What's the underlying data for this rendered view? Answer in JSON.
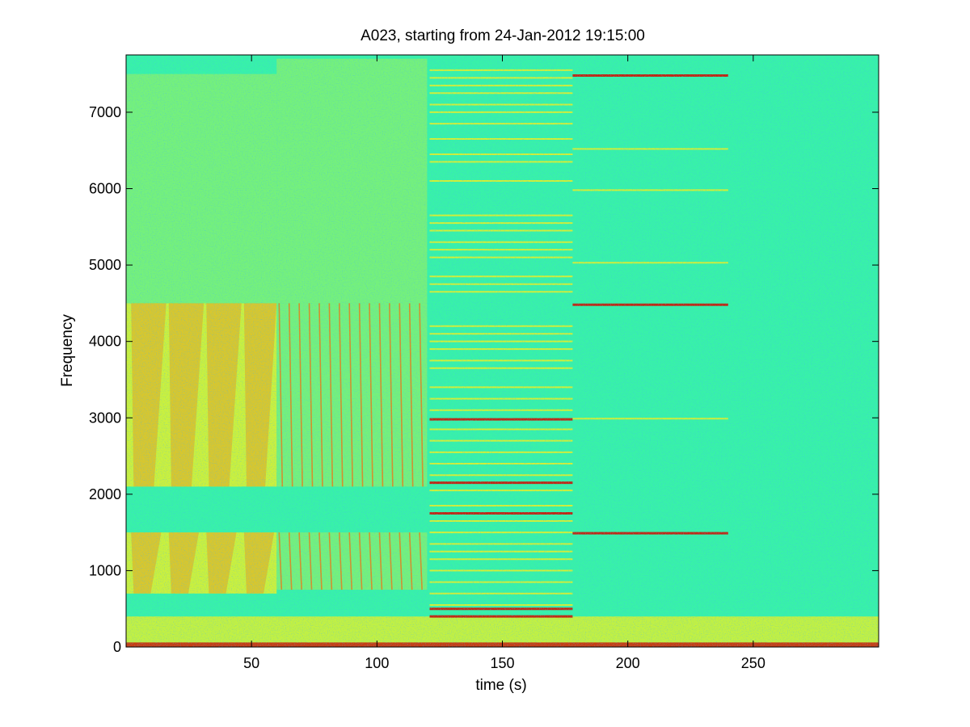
{
  "chart_data": {
    "type": "heatmap",
    "title": "A023, starting from 24-Jan-2012 19:15:00",
    "xlabel": "time (s)",
    "ylabel": "Frequency",
    "xlim": [
      0,
      300
    ],
    "ylim": [
      0,
      7750
    ],
    "xticks": [
      50,
      100,
      150,
      200,
      250
    ],
    "yticks": [
      0,
      1000,
      2000,
      3000,
      4000,
      5000,
      6000,
      7000
    ],
    "grid": false,
    "colormap": "jet",
    "colors": {
      "background": "#38f2a8",
      "medium": "#a8f055",
      "high": "#f0f020",
      "peak": "#f07810",
      "max": "#c81e0a"
    },
    "segments": [
      {
        "name": "segment-1",
        "t_start": 0,
        "t_end": 60,
        "bands": [
          {
            "f_low": 2100,
            "f_high": 4500,
            "level": "high"
          },
          {
            "f_low": 700,
            "f_high": 1500,
            "level": "high"
          },
          {
            "f_low": 4500,
            "f_high": 7500,
            "level": "medium"
          }
        ],
        "sweeps_down": [
          {
            "t": 2,
            "f_high": 4500,
            "f_low": 2100,
            "dt": 14
          },
          {
            "t": 17,
            "f_high": 4500,
            "f_low": 2100,
            "dt": 14
          },
          {
            "t": 32,
            "f_high": 4500,
            "f_low": 2100,
            "dt": 14
          },
          {
            "t": 47,
            "f_high": 4500,
            "f_low": 2100,
            "dt": 13
          },
          {
            "t": 2,
            "f_high": 1500,
            "f_low": 700,
            "dt": 12
          },
          {
            "t": 17,
            "f_high": 1500,
            "f_low": 700,
            "dt": 12
          },
          {
            "t": 32,
            "f_high": 1500,
            "f_low": 700,
            "dt": 12
          },
          {
            "t": 47,
            "f_high": 1500,
            "f_low": 700,
            "dt": 12
          }
        ]
      },
      {
        "name": "segment-2",
        "t_start": 60,
        "t_end": 120,
        "bands": [
          {
            "f_low": 2100,
            "f_high": 4500,
            "level": "medium"
          },
          {
            "f_low": 750,
            "f_high": 1500,
            "level": "medium"
          },
          {
            "f_low": 4500,
            "f_high": 7700,
            "level": "medium"
          }
        ],
        "pulse_period": 4
      },
      {
        "name": "segment-3",
        "t_start": 121,
        "t_end": 178,
        "tones": [
          7550,
          7450,
          7350,
          7250,
          7100,
          7000,
          6850,
          6650,
          6450,
          6350,
          6100,
          5650,
          5550,
          5450,
          5300,
          5200,
          5100,
          4850,
          4750,
          4650,
          4200,
          4100,
          4000,
          3900,
          3750,
          3650,
          3400,
          3250,
          3100,
          2980,
          2850,
          2700,
          2550,
          2400,
          2250,
          2150,
          2050,
          1850,
          1750,
          1650,
          1500,
          1350,
          1250,
          1150,
          1000,
          850,
          700,
          550,
          500,
          400
        ],
        "strong_tones": [
          2980,
          2150,
          1750,
          500,
          400
        ]
      },
      {
        "name": "segment-4",
        "t_start": 178,
        "t_end": 240,
        "tones": [
          7480,
          6520,
          5980,
          5030,
          4480,
          2990,
          1490
        ],
        "strong_tones": [
          7480,
          4480,
          1490
        ]
      },
      {
        "name": "segment-5",
        "t_start": 240,
        "t_end": 300
      }
    ],
    "low_band": {
      "f_low": 0,
      "f_high": 400,
      "level": "high"
    }
  }
}
